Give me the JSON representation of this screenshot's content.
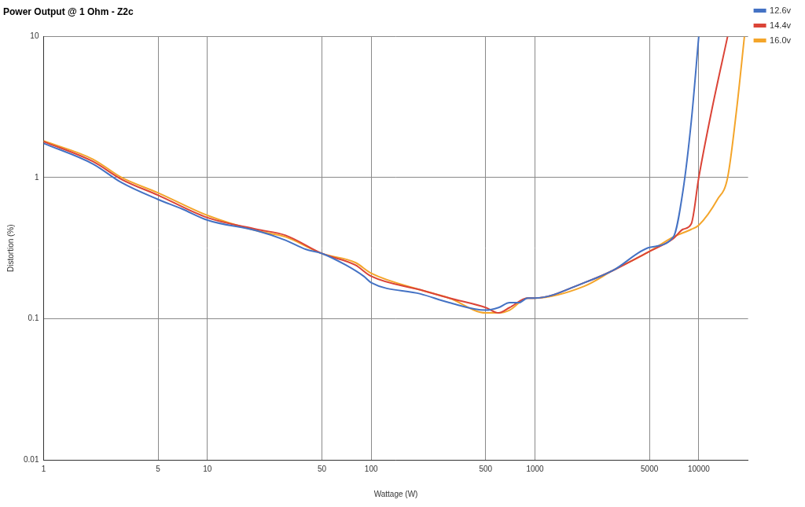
{
  "chart_data": {
    "type": "line",
    "title": "Power Output @ 1 Ohm - Z2c",
    "x_label": "Wattage (W)",
    "y_label": "Distortion (%)",
    "log": true,
    "grid": true,
    "legend": "right",
    "line_style": "smooth",
    "xlim": [
      1,
      20000
    ],
    "ylim": [
      0.01,
      10
    ],
    "xticks": [
      1,
      5,
      10,
      50,
      100,
      500,
      1000,
      5000,
      10000
    ],
    "yticks": [
      0.01,
      0.1,
      1,
      10
    ],
    "series": [
      {
        "name": "12.6v",
        "color": "#4472c4",
        "x": [
          1,
          2,
          3,
          5,
          7,
          10,
          20,
          30,
          40,
          50,
          70,
          90,
          100,
          200,
          300,
          500,
          600,
          700,
          800,
          900,
          1000,
          2000,
          3000,
          5000,
          7000,
          8000,
          9000,
          10000
        ],
        "values": [
          1.75,
          1.25,
          0.92,
          0.7,
          0.6,
          0.5,
          0.42,
          0.36,
          0.31,
          0.29,
          0.24,
          0.2,
          0.18,
          0.15,
          0.13,
          0.115,
          0.12,
          0.13,
          0.13,
          0.14,
          0.14,
          0.18,
          0.22,
          0.32,
          0.38,
          0.8,
          2.5,
          10
        ]
      },
      {
        "name": "14.4v",
        "color": "#db4437",
        "x": [
          1,
          2,
          3,
          5,
          10,
          20,
          30,
          50,
          80,
          100,
          200,
          300,
          500,
          600,
          700,
          900,
          1000,
          2000,
          3000,
          5000,
          7000,
          8000,
          9000,
          10000,
          12000,
          15000
        ],
        "values": [
          1.8,
          1.3,
          0.97,
          0.75,
          0.52,
          0.43,
          0.39,
          0.29,
          0.24,
          0.2,
          0.16,
          0.14,
          0.12,
          0.11,
          0.12,
          0.14,
          0.14,
          0.18,
          0.22,
          0.3,
          0.37,
          0.43,
          0.47,
          1,
          3,
          10
        ]
      },
      {
        "name": "16.0v",
        "color": "#f4a52a",
        "x": [
          1,
          2,
          3,
          5,
          10,
          20,
          30,
          50,
          80,
          100,
          200,
          300,
          500,
          600,
          700,
          900,
          1000,
          2000,
          3000,
          5000,
          7000,
          9000,
          10000,
          13000,
          15000,
          17000,
          19000
        ],
        "values": [
          1.82,
          1.35,
          1.0,
          0.78,
          0.54,
          0.42,
          0.38,
          0.29,
          0.25,
          0.21,
          0.16,
          0.14,
          0.11,
          0.11,
          0.115,
          0.14,
          0.14,
          0.17,
          0.22,
          0.3,
          0.38,
          0.43,
          0.46,
          0.7,
          1.0,
          3,
          10
        ]
      }
    ]
  }
}
